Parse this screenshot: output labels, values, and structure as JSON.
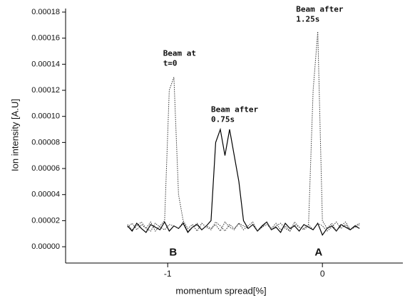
{
  "chart_data": {
    "type": "line",
    "x_label": "momentum spread[%]",
    "y_label": "Ion intensity [A.U]",
    "xlim": [
      -1.66,
      0.52
    ],
    "ylim": [
      -1.25e-05,
      0.00018
    ],
    "xticks": [
      -1,
      0
    ],
    "yticks": [
      {
        "value": 0,
        "label": "0.00000"
      },
      {
        "value": 2e-05,
        "label": "0.00002"
      },
      {
        "value": 4e-05,
        "label": "0.00004"
      },
      {
        "value": 6e-05,
        "label": "0.00006"
      },
      {
        "value": 8e-05,
        "label": "0.00008"
      },
      {
        "value": 0.0001,
        "label": "0.00010"
      },
      {
        "value": 0.00012,
        "label": "0.00012"
      },
      {
        "value": 0.00014,
        "label": "0.00014"
      },
      {
        "value": 0.00016,
        "label": "0.00016"
      },
      {
        "value": 0.00018,
        "label": "0.00018"
      }
    ],
    "x": [
      -1.26,
      -1.23,
      -1.2,
      -1.17,
      -1.14,
      -1.11,
      -1.08,
      -1.05,
      -1.02,
      -0.99,
      -0.96,
      -0.93,
      -0.9,
      -0.87,
      -0.84,
      -0.81,
      -0.78,
      -0.75,
      -0.72,
      -0.69,
      -0.66,
      -0.63,
      -0.6,
      -0.57,
      -0.54,
      -0.51,
      -0.48,
      -0.45,
      -0.42,
      -0.39,
      -0.36,
      -0.33,
      -0.3,
      -0.27,
      -0.24,
      -0.21,
      -0.18,
      -0.15,
      -0.12,
      -0.09,
      -0.06,
      -0.03,
      0,
      0.03,
      0.06,
      0.09,
      0.12,
      0.15,
      0.18,
      0.21,
      0.24
    ],
    "series": [
      {
        "color": "#333333",
        "dash": "dotted",
        "values": [
          1.5e-05,
          1.8e-05,
          1.3e-05,
          1.7e-05,
          1.4e-05,
          1.9e-05,
          1.2e-05,
          1.6e-05,
          2e-05,
          0.00012,
          0.00013,
          4e-05,
          2e-05,
          1.4e-05,
          1.7e-05,
          1.2e-05,
          1.8e-05,
          1.5e-05,
          1.3e-05,
          1.9e-05,
          1.6e-05,
          1.2e-05,
          1.7e-05,
          1.4e-05,
          1.8e-05,
          1.3e-05,
          1.6e-05,
          1.9e-05,
          1.2e-05,
          1.5e-05,
          1.7e-05,
          1.4e-05,
          1.8e-05,
          1.3e-05,
          1.6e-05,
          1.2e-05,
          1.9e-05,
          1.5e-05,
          1.4e-05,
          1.7e-05,
          1.3e-05,
          1.8e-05,
          1.6e-05,
          1.2e-05,
          1.5e-05,
          1.9e-05,
          1.4e-05,
          1.7e-05,
          1.3e-05,
          1.6e-05,
          1.8e-05
        ]
      },
      {
        "color": "#000000",
        "dash": "solid",
        "values": [
          1.6e-05,
          1.2e-05,
          1.8e-05,
          1.4e-05,
          1.1e-05,
          1.7e-05,
          1.5e-05,
          1.3e-05,
          1.9e-05,
          1.2e-05,
          1.6e-05,
          1.4e-05,
          1.8e-05,
          1.1e-05,
          1.5e-05,
          1.7e-05,
          1.3e-05,
          1.6e-05,
          2e-05,
          8e-05,
          9e-05,
          7e-05,
          9e-05,
          7e-05,
          5e-05,
          2e-05,
          1.4e-05,
          1.7e-05,
          1.2e-05,
          1.6e-05,
          1.9e-05,
          1.3e-05,
          1.5e-05,
          1.1e-05,
          1.8e-05,
          1.4e-05,
          1.6e-05,
          1.2e-05,
          1.7e-05,
          1.5e-05,
          1.3e-05,
          1.8e-05,
          9e-06,
          1.4e-05,
          1.6e-05,
          1.2e-05,
          1.7e-05,
          1.5e-05,
          1.3e-05,
          1.6e-05,
          1.4e-05
        ]
      },
      {
        "color": "#333333",
        "dash": "dotted",
        "values": [
          1.7e-05,
          1.3e-05,
          1.6e-05,
          1.9e-05,
          1.4e-05,
          1.2e-05,
          1.8e-05,
          1.5e-05,
          1.3e-05,
          1.7e-05,
          1.6e-05,
          1.4e-05,
          1.9e-05,
          1.2e-05,
          1.5e-05,
          1.8e-05,
          1.3e-05,
          1.6e-05,
          1.4e-05,
          1.7e-05,
          1.2e-05,
          1.9e-05,
          1.5e-05,
          1.3e-05,
          1.8e-05,
          1.6e-05,
          1.4e-05,
          1.7e-05,
          1.2e-05,
          1.5e-05,
          1.9e-05,
          1.3e-05,
          1.6e-05,
          1.8e-05,
          1.4e-05,
          1.2e-05,
          1.7e-05,
          1.5e-05,
          1.3e-05,
          1.6e-05,
          0.00012,
          0.000165,
          2e-05,
          1.4e-05,
          1.8e-05,
          1.2e-05,
          1.6e-05,
          1.9e-05,
          1.3e-05,
          1.5e-05,
          1.7e-05
        ]
      }
    ],
    "annotations": [
      {
        "lines": [
          "Beam at",
          "t=0"
        ],
        "x": -1.03,
        "y": 0.000148,
        "style": "ann"
      },
      {
        "lines": [
          "Beam after",
          "0.75s"
        ],
        "x": -0.72,
        "y": 0.000105,
        "style": "ann"
      },
      {
        "lines": [
          "Beam after",
          "1.25s"
        ],
        "x": -0.17,
        "y": 0.000182,
        "style": "ann"
      },
      {
        "lines": [
          "B"
        ],
        "x": -0.99,
        "y": -4.5e-06,
        "style": "big"
      },
      {
        "lines": [
          "A"
        ],
        "x": -0.05,
        "y": -4.5e-06,
        "style": "big"
      }
    ]
  }
}
